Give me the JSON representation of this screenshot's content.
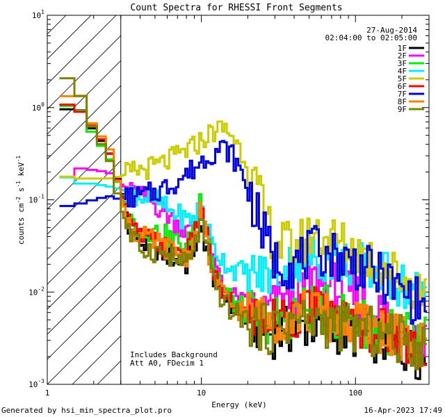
{
  "footer": {
    "generated_by": "Generated by hsi_min_spectra_plot.pro",
    "timestamp": "16-Apr-2023 17:49"
  },
  "chart_data": {
    "type": "line",
    "title": "Count Spectra for RHESSI Front Segments",
    "xlabel": "Energy (keV)",
    "ylabel": "counts cm-2 s-1 keV-1",
    "xscale": "log",
    "yscale": "log",
    "xlim": [
      1,
      300
    ],
    "ylim": [
      0.001,
      10
    ],
    "x_ticks": [
      {
        "v": 1,
        "label": "1"
      },
      {
        "v": 10,
        "label": "10"
      },
      {
        "v": 100,
        "label": "100"
      }
    ],
    "y_ticks": [
      {
        "v": 10,
        "base": "10",
        "exp": "1"
      },
      {
        "v": 1,
        "base": "10",
        "exp": "0"
      },
      {
        "v": 0.1,
        "base": "10",
        "exp": "-1"
      },
      {
        "v": 0.01,
        "base": "10",
        "exp": "-2"
      },
      {
        "v": 0.001,
        "base": "10",
        "exp": "-3"
      }
    ],
    "hatched_region": {
      "from_keV": 1,
      "to_keV": 3
    },
    "date": "27-Aug-2014",
    "time_range": "02:04:00 to 02:05:00",
    "annotations": [
      "Includes Background",
      "Att A0, FDecim 1"
    ],
    "series": [
      {
        "name": "1F",
        "color": "#000000",
        "e": [
          1.3,
          1.6,
          2,
          2.5,
          3,
          3.5,
          4,
          5,
          6,
          7,
          8,
          9,
          10,
          11,
          12,
          14,
          16,
          20,
          25,
          30,
          40,
          55,
          70,
          100,
          150,
          200,
          280
        ],
        "y": [
          0.95,
          1.0,
          0.55,
          0.35,
          0.13,
          0.045,
          0.035,
          0.03,
          0.025,
          0.022,
          0.02,
          0.03,
          0.045,
          0.03,
          0.015,
          0.009,
          0.007,
          0.005,
          0.004,
          0.0035,
          0.004,
          0.0045,
          0.004,
          0.0035,
          0.003,
          0.0025,
          0.002
        ]
      },
      {
        "name": "2F",
        "color": "#ff00ff",
        "e": [
          1.3,
          1.6,
          2,
          2.5,
          3,
          3.5,
          4,
          5,
          6,
          7,
          8,
          9,
          10,
          11,
          12,
          14,
          16,
          20,
          25,
          30,
          40,
          55,
          70,
          100,
          150,
          200,
          280
        ],
        "y": [
          0.17,
          0.22,
          0.21,
          0.2,
          0.15,
          0.12,
          0.11,
          0.09,
          0.07,
          0.055,
          0.045,
          0.05,
          0.09,
          0.04,
          0.02,
          0.012,
          0.009,
          0.007,
          0.006,
          0.007,
          0.01,
          0.013,
          0.012,
          0.009,
          0.006,
          0.004,
          0.003
        ]
      },
      {
        "name": "3F",
        "color": "#00ee00",
        "e": [
          1.3,
          1.6,
          2,
          2.5,
          3,
          3.5,
          4,
          5,
          6,
          7,
          8,
          9,
          10,
          11,
          12,
          14,
          16,
          20,
          25,
          30,
          40,
          55,
          70,
          100,
          150,
          200,
          280
        ],
        "y": [
          1.05,
          1.0,
          0.5,
          0.3,
          0.12,
          0.06,
          0.05,
          0.045,
          0.04,
          0.035,
          0.03,
          0.05,
          0.12,
          0.05,
          0.02,
          0.011,
          0.008,
          0.006,
          0.005,
          0.005,
          0.006,
          0.007,
          0.006,
          0.005,
          0.004,
          0.0035,
          0.003
        ]
      },
      {
        "name": "4F",
        "color": "#00eeff",
        "e": [
          1.3,
          1.6,
          2,
          2.5,
          3,
          3.5,
          4,
          5,
          6,
          7,
          8,
          9,
          10,
          11,
          12,
          14,
          16,
          20,
          25,
          30,
          40,
          55,
          70,
          100,
          150,
          200,
          280
        ],
        "y": [
          0.18,
          0.15,
          0.15,
          0.14,
          0.13,
          0.12,
          0.11,
          0.1,
          0.08,
          0.07,
          0.06,
          0.065,
          0.09,
          0.05,
          0.03,
          0.022,
          0.018,
          0.016,
          0.015,
          0.016,
          0.02,
          0.024,
          0.023,
          0.02,
          0.016,
          0.012,
          0.009
        ]
      },
      {
        "name": "5F",
        "color": "#cccc00",
        "e": [
          1.3,
          1.6,
          2,
          2.5,
          3,
          3.5,
          4,
          5,
          6,
          7,
          8,
          9,
          10,
          11,
          12,
          14,
          16,
          20,
          25,
          30,
          40,
          55,
          70,
          100,
          150,
          200,
          280
        ],
        "y": [
          0.18,
          0.17,
          0.17,
          0.17,
          0.18,
          0.2,
          0.21,
          0.23,
          0.26,
          0.3,
          0.34,
          0.38,
          0.44,
          0.5,
          0.55,
          0.6,
          0.5,
          0.25,
          0.08,
          0.035,
          0.03,
          0.045,
          0.038,
          0.028,
          0.02,
          0.014,
          0.01
        ]
      },
      {
        "name": "6F",
        "color": "#ff0000",
        "e": [
          1.3,
          1.6,
          2,
          2.5,
          3,
          3.5,
          4,
          5,
          6,
          7,
          8,
          9,
          10,
          11,
          12,
          14,
          16,
          20,
          25,
          30,
          40,
          55,
          70,
          100,
          150,
          200,
          280
        ],
        "y": [
          1.1,
          0.95,
          0.6,
          0.35,
          0.12,
          0.05,
          0.04,
          0.035,
          0.03,
          0.028,
          0.025,
          0.04,
          0.08,
          0.035,
          0.015,
          0.009,
          0.007,
          0.006,
          0.005,
          0.005,
          0.006,
          0.006,
          0.005,
          0.0045,
          0.004,
          0.003,
          0.0025
        ]
      },
      {
        "name": "7F",
        "color": "#0000dd",
        "e": [
          1.3,
          1.6,
          2,
          2.5,
          3,
          3.5,
          4,
          5,
          6,
          7,
          8,
          9,
          10,
          11,
          12,
          14,
          16,
          20,
          25,
          30,
          40,
          55,
          70,
          100,
          150,
          200,
          280
        ],
        "y": [
          0.085,
          0.09,
          0.1,
          0.11,
          0.1,
          0.105,
          0.11,
          0.12,
          0.14,
          0.16,
          0.19,
          0.22,
          0.26,
          0.3,
          0.33,
          0.37,
          0.3,
          0.14,
          0.045,
          0.022,
          0.02,
          0.028,
          0.026,
          0.02,
          0.014,
          0.01,
          0.007
        ]
      },
      {
        "name": "8F",
        "color": "#ff8000",
        "e": [
          1.3,
          1.6,
          2,
          2.5,
          3,
          3.5,
          4,
          5,
          6,
          7,
          8,
          9,
          10,
          11,
          12,
          14,
          16,
          20,
          25,
          30,
          40,
          55,
          70,
          100,
          150,
          200,
          280
        ],
        "y": [
          1.3,
          1.5,
          0.6,
          0.4,
          0.11,
          0.05,
          0.04,
          0.035,
          0.03,
          0.027,
          0.024,
          0.035,
          0.08,
          0.03,
          0.014,
          0.009,
          0.007,
          0.006,
          0.005,
          0.005,
          0.006,
          0.006,
          0.005,
          0.0045,
          0.004,
          0.003,
          0.0025
        ]
      },
      {
        "name": "9F",
        "color": "#808000",
        "e": [
          1.3,
          1.6,
          2,
          2.5,
          3,
          3.5,
          4,
          5,
          6,
          7,
          8,
          9,
          10,
          11,
          12,
          14,
          16,
          20,
          25,
          30,
          40,
          55,
          70,
          100,
          150,
          200,
          280
        ],
        "y": [
          2.2,
          1.5,
          0.55,
          0.3,
          0.08,
          0.04,
          0.03,
          0.028,
          0.025,
          0.022,
          0.02,
          0.03,
          0.06,
          0.025,
          0.012,
          0.008,
          0.006,
          0.005,
          0.004,
          0.004,
          0.005,
          0.005,
          0.0045,
          0.004,
          0.0035,
          0.003,
          0.0025
        ]
      }
    ]
  }
}
